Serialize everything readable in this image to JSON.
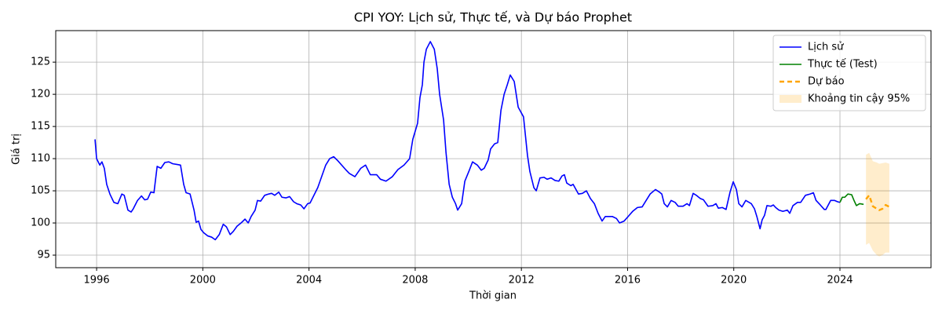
{
  "chart_data": {
    "type": "line",
    "title": "CPI YOY: Lịch sử, Thực tế, và Dự báo Prophet",
    "x_label": "Thời gian",
    "y_label": "Giá trị",
    "xlim": [
      1994.46,
      2027.43
    ],
    "ylim": [
      93.05,
      129.9
    ],
    "xticks": [
      1996,
      2000,
      2004,
      2008,
      2012,
      2016,
      2020,
      2024
    ],
    "yticks": [
      95,
      100,
      105,
      110,
      115,
      120,
      125
    ],
    "grid": true,
    "legend": "upper right",
    "series": [
      {
        "name": "Lịch sử",
        "color": "#0000ff",
        "dash": false,
        "x": [
          1995.94,
          1996.0,
          1996.12,
          1996.2,
          1996.29,
          1996.38,
          1996.5,
          1996.65,
          1996.8,
          1996.95,
          1997.04,
          1997.18,
          1997.3,
          1997.38,
          1997.54,
          1997.69,
          1997.81,
          1997.92,
          1998.04,
          1998.16,
          1998.28,
          1998.42,
          1998.57,
          1998.72,
          1998.87,
          1999.02,
          1999.16,
          1999.28,
          1999.37,
          1999.52,
          1999.67,
          1999.75,
          1999.84,
          1999.93,
          2000.03,
          2000.18,
          2000.33,
          2000.47,
          2000.62,
          2000.77,
          2000.89,
          2001.03,
          2001.15,
          2001.29,
          2001.44,
          2001.59,
          2001.71,
          2001.82,
          2001.97,
          2002.06,
          2002.18,
          2002.33,
          2002.48,
          2002.59,
          2002.71,
          2002.86,
          2002.98,
          2003.13,
          2003.27,
          2003.42,
          2003.54,
          2003.69,
          2003.81,
          2003.95,
          2004.04,
          2004.33,
          2004.63,
          2004.78,
          2004.93,
          2005.08,
          2005.38,
          2005.52,
          2005.73,
          2005.95,
          2006.13,
          2006.31,
          2006.55,
          2006.69,
          2006.9,
          2007.14,
          2007.35,
          2007.58,
          2007.79,
          2007.91,
          2008.09,
          2008.18,
          2008.27,
          2008.33,
          2008.42,
          2008.57,
          2008.72,
          2008.83,
          2008.92,
          2009.07,
          2009.16,
          2009.28,
          2009.4,
          2009.52,
          2009.6,
          2009.75,
          2009.87,
          2010.02,
          2010.16,
          2010.34,
          2010.49,
          2010.6,
          2010.75,
          2010.84,
          2010.99,
          2011.11,
          2011.23,
          2011.35,
          2011.47,
          2011.58,
          2011.73,
          2011.88,
          2012.08,
          2012.23,
          2012.32,
          2012.47,
          2012.56,
          2012.7,
          2012.85,
          2012.97,
          2013.12,
          2013.27,
          2013.41,
          2013.53,
          2013.62,
          2013.71,
          2013.86,
          2013.95,
          2014.15,
          2014.3,
          2014.45,
          2014.6,
          2014.75,
          2014.89,
          2015.04,
          2015.16,
          2015.43,
          2015.58,
          2015.7,
          2015.87,
          2016.02,
          2016.19,
          2016.37,
          2016.55,
          2016.7,
          2016.85,
          2017.05,
          2017.2,
          2017.29,
          2017.38,
          2017.5,
          2017.64,
          2017.79,
          2017.91,
          2018.09,
          2018.24,
          2018.33,
          2018.47,
          2018.59,
          2018.74,
          2018.86,
          2019.03,
          2019.21,
          2019.33,
          2019.42,
          2019.57,
          2019.71,
          2019.86,
          2019.98,
          2020.1,
          2020.19,
          2020.31,
          2020.45,
          2020.66,
          2020.78,
          2020.87,
          2020.99,
          2021.07,
          2021.16,
          2021.25,
          2021.4,
          2021.49,
          2021.58,
          2021.7,
          2021.85,
          2022.02,
          2022.11,
          2022.23,
          2022.4,
          2022.52,
          2022.7,
          2022.88,
          2023.0,
          2023.1,
          2023.26,
          2023.41,
          2023.47,
          2023.65,
          2023.8,
          2023.91,
          2024.0
        ],
        "values": [
          113,
          110,
          109,
          109.5,
          108.5,
          106,
          104.5,
          103.2,
          103,
          104.5,
          104.3,
          102,
          101.7,
          102.2,
          103.5,
          104.2,
          103.6,
          103.7,
          104.8,
          104.7,
          108.8,
          108.5,
          109.4,
          109.5,
          109.2,
          109.1,
          109,
          106,
          104.7,
          104.5,
          102,
          100.1,
          100.3,
          99,
          98.5,
          98,
          97.8,
          97.4,
          98.2,
          99.8,
          99.4,
          98.2,
          98.7,
          99.5,
          100,
          100.6,
          100,
          101,
          102,
          103.5,
          103.4,
          104.3,
          104.5,
          104.6,
          104.3,
          104.8,
          104,
          103.9,
          104.1,
          103.3,
          103,
          102.8,
          102.2,
          103,
          103.1,
          105.5,
          109,
          110,
          110.3,
          109.7,
          108.3,
          107.7,
          107.2,
          108.5,
          109,
          107.5,
          107.5,
          106.8,
          106.5,
          107.2,
          108.3,
          109,
          110,
          113,
          115.5,
          119.5,
          121.5,
          125,
          127,
          128.2,
          127,
          124,
          120,
          116,
          111,
          106,
          104,
          103,
          102,
          103,
          106.5,
          108,
          109.5,
          109,
          108.2,
          108.5,
          109.8,
          111.5,
          112.3,
          112.5,
          117.5,
          120,
          121.5,
          123,
          122,
          118,
          116.5,
          110.5,
          108,
          105.5,
          105,
          107,
          107.1,
          106.8,
          107,
          106.6,
          106.5,
          107.3,
          107.5,
          106.2,
          105.8,
          106,
          104.5,
          104.6,
          105,
          103.8,
          103,
          101.5,
          100.3,
          101,
          101,
          100.7,
          100,
          100.3,
          101,
          101.8,
          102.4,
          102.5,
          103.5,
          104.5,
          105.2,
          104.8,
          104.5,
          103,
          102.5,
          103.5,
          103.2,
          102.6,
          102.6,
          103,
          102.7,
          104.6,
          104.3,
          103.8,
          103.6,
          102.6,
          102.7,
          103,
          102.3,
          102.4,
          102.1,
          104.8,
          106.4,
          105.2,
          103,
          102.5,
          103.5,
          103,
          102.2,
          101,
          99.1,
          100.5,
          101.2,
          102.7,
          102.6,
          102.8,
          102.4,
          102,
          101.8,
          102,
          101.5,
          102.7,
          103.2,
          103.2,
          104.3,
          104.5,
          104.7,
          103.5,
          102.8,
          102.1,
          102.1,
          103.5,
          103.5,
          103.3,
          103.2
        ]
      },
      {
        "name": "Thực tế (Test)",
        "color": "#008000",
        "dash": false,
        "x": [
          2024.0,
          2024.09,
          2024.18,
          2024.3,
          2024.44,
          2024.53,
          2024.62,
          2024.74,
          2024.89
        ],
        "values": [
          103.2,
          104,
          104,
          104.5,
          104.4,
          103.5,
          102.7,
          103,
          102.9
        ]
      },
      {
        "name": "Dự báo",
        "color": "#ffa500",
        "dash": true,
        "x": [
          2024.98,
          2025.1,
          2025.24,
          2025.39,
          2025.48,
          2025.6,
          2025.72,
          2025.86
        ],
        "values": [
          103.7,
          104.3,
          102.6,
          102.2,
          102,
          102.2,
          102.8,
          102.5
        ]
      }
    ],
    "band": {
      "name": "Khoảng tin cậy 95%",
      "color": "#ffa500",
      "x": [
        2024.98,
        2025.1,
        2025.24,
        2025.39,
        2025.48,
        2025.6,
        2025.72,
        2025.86
      ],
      "lower": [
        96.6,
        96.9,
        95.7,
        95,
        94.8,
        95,
        95.4,
        95.4
      ],
      "upper": [
        110.6,
        110.9,
        109.6,
        109.4,
        109.2,
        109.3,
        109.4,
        109.2
      ]
    }
  }
}
